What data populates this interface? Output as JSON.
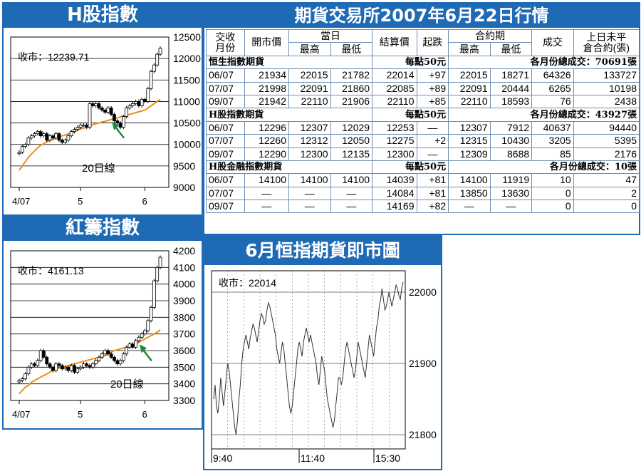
{
  "panels": {
    "h_index": {
      "title": "H股指數",
      "close_label": "收市：12239.71",
      "ma_label": "20日線",
      "y_ticks": [
        "12500",
        "12000",
        "11500",
        "11000",
        "10500",
        "10000",
        "9500",
        "9000"
      ],
      "x_ticks": [
        "4/07",
        "5",
        "6"
      ]
    },
    "red_chip": {
      "title": "紅籌指數",
      "close_label": "收市：4161.13",
      "ma_label": "20日線",
      "y_ticks": [
        "4200",
        "4100",
        "4000",
        "3900",
        "3800",
        "3700",
        "3600",
        "3500",
        "3400",
        "3300"
      ],
      "x_ticks": [
        "4/07",
        "5",
        "6"
      ]
    },
    "futures": {
      "title": "期貨交易所2007年6月22日行情"
    },
    "intraday": {
      "title": "6月恒指期貨即市圖",
      "close_label": "收市：22014",
      "y_ticks": [
        "22000",
        "21900",
        "21800"
      ],
      "x_ticks": [
        "9:40",
        "11:40",
        "15:30"
      ]
    }
  },
  "table": {
    "headers": {
      "month": "交收\n月份",
      "open": "開市價",
      "day": "當日",
      "high": "最高",
      "low": "最低",
      "settle": "結算價",
      "change": "起跌",
      "contract": "合約期",
      "c_high": "最高",
      "c_low": "最低",
      "volume": "成交",
      "oi": "上日未平\n倉合約(張)"
    },
    "sections": [
      {
        "name": "恒生指數期貨",
        "unit": "每點50元",
        "total": "各月份總成交：70691張",
        "rows": [
          [
            "06/07",
            "21934",
            "22015",
            "21782",
            "22014",
            "+97",
            "22015",
            "18271",
            "64326",
            "133727"
          ],
          [
            "07/07",
            "21998",
            "22091",
            "21860",
            "22085",
            "+89",
            "22091",
            "20444",
            "6265",
            "10198"
          ],
          [
            "09/07",
            "21942",
            "22110",
            "21906",
            "22110",
            "+85",
            "22110",
            "18593",
            "76",
            "2438"
          ]
        ]
      },
      {
        "name": "H股指數期貨",
        "unit": "每點50元",
        "total": "各月份總成交：43927張",
        "rows": [
          [
            "06/07",
            "12296",
            "12307",
            "12029",
            "12253",
            "—",
            "12307",
            "7912",
            "40637",
            "94440"
          ],
          [
            "07/07",
            "12260",
            "12312",
            "12050",
            "12275",
            "+2",
            "12315",
            "10430",
            "3205",
            "5395"
          ],
          [
            "09/07",
            "12290",
            "12300",
            "12135",
            "12300",
            "—",
            "12309",
            "8688",
            "85",
            "2176"
          ]
        ]
      },
      {
        "name": "H股金融指數期貨",
        "unit": "每點50元",
        "total": "各月份總成交：10張",
        "rows": [
          [
            "06/07",
            "14100",
            "14100",
            "14100",
            "14039",
            "+81",
            "14100",
            "11919",
            "10",
            "47"
          ],
          [
            "07/07",
            "—",
            "—",
            "—",
            "14084",
            "+81",
            "13850",
            "13630",
            "0",
            "2"
          ],
          [
            "09/07",
            "—",
            "—",
            "—",
            "14169",
            "+82",
            "—",
            "—",
            "0",
            "0"
          ]
        ]
      }
    ]
  },
  "colors": {
    "panel_blue": "#1f6ab5",
    "ma_orange": "#f08c1e",
    "arrow_green": "#1a8a3a",
    "candle": "#000000",
    "grid": "#000000"
  },
  "chart_data": [
    {
      "type": "candlestick",
      "name_ref": "H股指數",
      "ylim": [
        9000,
        12500
      ],
      "y_ticks": [
        12500,
        12000,
        11500,
        11000,
        10500,
        10000,
        9500,
        9000
      ],
      "x_tick_labels": [
        "4/07",
        "5",
        "6"
      ],
      "x_tick_index": [
        0,
        20,
        41
      ],
      "close": [
        9820,
        9950,
        10000,
        10150,
        10200,
        10250,
        10300,
        10200,
        10250,
        10100,
        10200,
        10150,
        10250,
        10100,
        10050,
        10100,
        10200,
        10300,
        10350,
        10400,
        10450,
        10450,
        10400,
        10950,
        10900,
        10950,
        10850,
        10800,
        10750,
        10850,
        10700,
        10550,
        10500,
        10400,
        10650,
        10850,
        10900,
        10950,
        11000,
        10900,
        11050,
        11000,
        11300,
        11700,
        11850,
        12100,
        12239.71
      ],
      "ma20": [
        9400,
        9500,
        9600,
        9700,
        9780,
        9850,
        9920,
        9980,
        10020,
        10060,
        10100,
        10120,
        10150,
        10180,
        10200,
        10220,
        10250,
        10270,
        10300,
        10330,
        10360,
        10380,
        10400,
        10430,
        10460,
        10480,
        10500,
        10520,
        10540,
        10560,
        10580,
        10600,
        10620,
        10640,
        10660,
        10680,
        10700,
        10720,
        10740,
        10760,
        10780,
        10800,
        10850,
        10900,
        10950,
        11000,
        11050
      ]
    },
    {
      "type": "candlestick",
      "name_ref": "紅籌指數",
      "ylim": [
        3300,
        4200
      ],
      "y_ticks": [
        4200,
        4100,
        4000,
        3900,
        3800,
        3700,
        3600,
        3500,
        3400,
        3300
      ],
      "x_tick_labels": [
        "4/07",
        "5",
        "6"
      ],
      "x_tick_index": [
        0,
        20,
        41
      ],
      "close": [
        3420,
        3430,
        3460,
        3500,
        3520,
        3510,
        3540,
        3600,
        3560,
        3520,
        3500,
        3480,
        3520,
        3510,
        3490,
        3500,
        3480,
        3510,
        3470,
        3490,
        3500,
        3520,
        3510,
        3500,
        3520,
        3540,
        3560,
        3580,
        3600,
        3580,
        3560,
        3540,
        3520,
        3540,
        3580,
        3620,
        3640,
        3620,
        3660,
        3680,
        3700,
        3720,
        3780,
        3860,
        4020,
        4100,
        4161.13
      ],
      "ma20": [
        3340,
        3360,
        3380,
        3390,
        3410,
        3420,
        3430,
        3440,
        3450,
        3460,
        3470,
        3480,
        3490,
        3495,
        3500,
        3505,
        3510,
        3515,
        3520,
        3525,
        3530,
        3535,
        3540,
        3545,
        3550,
        3555,
        3560,
        3565,
        3570,
        3580,
        3590,
        3600,
        3605,
        3610,
        3615,
        3620,
        3625,
        3630,
        3640,
        3650,
        3660,
        3670,
        3680,
        3690,
        3700,
        3710,
        3725
      ]
    },
    {
      "type": "line",
      "name_ref": "6月恒指期貨即市圖",
      "ylim": [
        21780,
        22030
      ],
      "y_ticks": [
        22000,
        21900,
        21800
      ],
      "x_tick_labels": [
        "9:40",
        "11:40",
        "15:30"
      ],
      "values": [
        21850,
        21870,
        21840,
        21830,
        21850,
        21880,
        21860,
        21840,
        21860,
        21880,
        21900,
        21890,
        21870,
        21850,
        21830,
        21810,
        21800,
        21820,
        21850,
        21870,
        21900,
        21920,
        21930,
        21940,
        21930,
        21920,
        21935,
        21945,
        21955,
        21950,
        21940,
        21930,
        21945,
        21960,
        21970,
        21965,
        21955,
        21960,
        21975,
        21985,
        21980,
        21970,
        21960,
        21950,
        21940,
        21920,
        21910,
        21900,
        21915,
        21930,
        21920,
        21900,
        21880,
        21860,
        21840,
        21830,
        21840,
        21860,
        21880,
        21900,
        21920,
        21930,
        21920,
        21910,
        21930,
        21940,
        21950,
        21940,
        21930,
        21940,
        21930,
        21920,
        21910,
        21900,
        21880,
        21870,
        21890,
        21910,
        21900,
        21890,
        21870,
        21850,
        21840,
        21830,
        21820,
        21810,
        21820,
        21840,
        21860,
        21880,
        21880,
        21870,
        21880,
        21900,
        21920,
        21930,
        21920,
        21910,
        21900,
        21890,
        21880,
        21890,
        21910,
        21930,
        21920,
        21910,
        21900,
        21890,
        21880,
        21900,
        21920,
        21940,
        21930,
        21920,
        21910,
        21930,
        21950,
        21960,
        21980,
        21990,
        22005,
        21990,
        21975,
        21980,
        21990,
        22000,
        21990,
        21980,
        21990,
        22000,
        22010,
        22005,
        21995,
        21990,
        22005,
        22014
      ]
    }
  ]
}
